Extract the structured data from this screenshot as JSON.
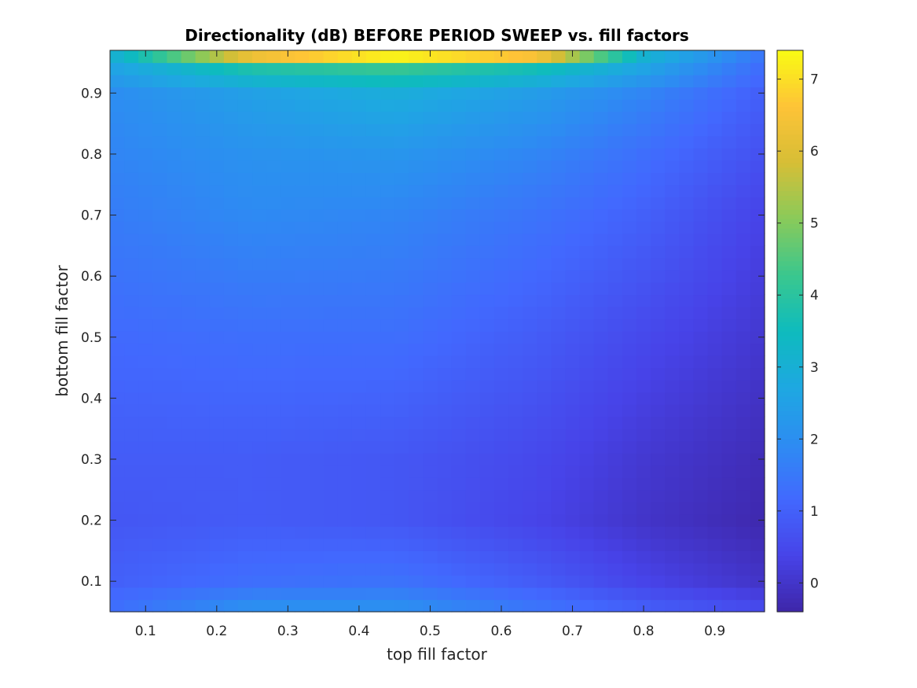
{
  "chart_data": {
    "type": "heatmap",
    "title": "Directionality (dB) BEFORE PERIOD SWEEP vs. fill factors",
    "xlabel": "top fill factor",
    "ylabel": "bottom fill factor",
    "xlim": [
      0.05,
      0.97
    ],
    "ylim": [
      0.05,
      0.97
    ],
    "x_ticks": [
      0.1,
      0.2,
      0.3,
      0.4,
      0.5,
      0.6,
      0.7,
      0.8,
      0.9
    ],
    "x_tick_labels": [
      "0.1",
      "0.2",
      "0.3",
      "0.4",
      "0.5",
      "0.6",
      "0.7",
      "0.8",
      "0.9"
    ],
    "y_ticks": [
      0.1,
      0.2,
      0.3,
      0.4,
      0.5,
      0.6,
      0.7,
      0.8,
      0.9
    ],
    "y_tick_labels": [
      "0.1",
      "0.2",
      "0.3",
      "0.4",
      "0.5",
      "0.6",
      "0.7",
      "0.8",
      "0.9"
    ],
    "grid": false,
    "colormap": "parula",
    "clim": [
      -0.4,
      7.4
    ],
    "colorbar_ticks": [
      0,
      1,
      2,
      3,
      4,
      5,
      6,
      7
    ],
    "colorbar_tick_labels": [
      "0",
      "1",
      "2",
      "3",
      "4",
      "5",
      "6",
      "7"
    ],
    "x_centers": [
      0.06,
      0.08,
      0.1,
      0.12,
      0.14,
      0.16,
      0.18,
      0.2,
      0.22,
      0.24,
      0.26,
      0.28,
      0.3,
      0.32,
      0.34,
      0.36,
      0.38,
      0.4,
      0.42,
      0.44,
      0.46,
      0.48,
      0.5,
      0.52,
      0.54,
      0.56,
      0.58,
      0.6,
      0.62,
      0.64,
      0.66,
      0.68,
      0.7,
      0.72,
      0.74,
      0.76,
      0.78,
      0.8,
      0.82,
      0.84,
      0.86,
      0.88,
      0.9,
      0.92,
      0.94,
      0.96
    ],
    "y_centers": [
      0.06,
      0.08,
      0.1,
      0.12,
      0.14,
      0.16,
      0.18,
      0.2,
      0.22,
      0.24,
      0.26,
      0.28,
      0.3,
      0.32,
      0.34,
      0.36,
      0.38,
      0.4,
      0.42,
      0.44,
      0.46,
      0.48,
      0.5,
      0.52,
      0.54,
      0.56,
      0.58,
      0.6,
      0.62,
      0.64,
      0.66,
      0.68,
      0.7,
      0.72,
      0.74,
      0.76,
      0.78,
      0.8,
      0.82,
      0.84,
      0.86,
      0.88,
      0.9,
      0.92,
      0.94,
      0.96
    ],
    "z_anchor_x": [
      0.06,
      0.25,
      0.45,
      0.65,
      0.8,
      0.96
    ],
    "z_anchor_y": [
      0.06,
      0.1,
      0.2,
      0.3,
      0.5,
      0.7,
      0.8,
      0.9,
      0.94,
      0.96
    ],
    "z_anchor_values": [
      [
        1.3,
        2.0,
        2.0,
        1.4,
        0.9,
        0.5
      ],
      [
        1.0,
        1.3,
        1.4,
        0.9,
        0.4,
        0.0
      ],
      [
        0.8,
        0.9,
        0.8,
        0.4,
        0.0,
        -0.3
      ],
      [
        0.9,
        0.9,
        0.8,
        0.5,
        0.1,
        -0.2
      ],
      [
        1.2,
        1.3,
        1.3,
        0.9,
        0.5,
        0.1
      ],
      [
        1.6,
        1.9,
        1.8,
        1.4,
        1.0,
        0.4
      ],
      [
        1.8,
        2.1,
        2.2,
        1.8,
        1.3,
        0.7
      ],
      [
        2.0,
        2.5,
        2.9,
        2.4,
        1.8,
        1.0
      ],
      [
        2.6,
        3.8,
        4.2,
        3.6,
        2.6,
        1.3
      ],
      [
        3.1,
        6.3,
        7.3,
        6.5,
        3.1,
        1.5
      ]
    ]
  }
}
